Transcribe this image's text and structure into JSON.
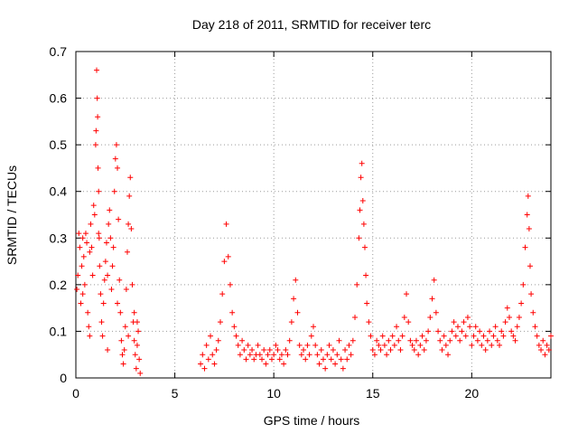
{
  "chart_data": {
    "type": "scatter",
    "title": "Day 218 of 2011, SRMTID for receiver terc",
    "xlabel": "GPS time / hours",
    "ylabel": "SRMTID / TECUs",
    "xlim": [
      0,
      24
    ],
    "ylim": [
      0,
      0.7
    ],
    "xticks": [
      0,
      5,
      10,
      15,
      20
    ],
    "yticks": [
      0,
      0.1,
      0.2,
      0.3,
      0.4,
      0.5,
      0.6,
      0.7
    ],
    "xtick_labels": [
      "0",
      "5",
      "10",
      "15",
      "20"
    ],
    "ytick_labels": [
      "0",
      "0.1",
      "0.2",
      "0.3",
      "0.4",
      "0.5",
      "0.6",
      "0.7"
    ],
    "grid": true,
    "marker": "plus",
    "marker_color": "#ff0000",
    "series": [
      {
        "name": "SRMTID",
        "points": [
          [
            0.05,
            0.19
          ],
          [
            0.1,
            0.22
          ],
          [
            0.15,
            0.31
          ],
          [
            0.2,
            0.28
          ],
          [
            0.25,
            0.16
          ],
          [
            0.3,
            0.24
          ],
          [
            0.35,
            0.3
          ],
          [
            0.4,
            0.26
          ],
          [
            0.45,
            0.2
          ],
          [
            0.5,
            0.31
          ],
          [
            0.55,
            0.29
          ],
          [
            0.6,
            0.14
          ],
          [
            0.65,
            0.11
          ],
          [
            0.7,
            0.09
          ],
          [
            0.75,
            0.33
          ],
          [
            0.8,
            0.28
          ],
          [
            0.85,
            0.22
          ],
          [
            0.9,
            0.37
          ],
          [
            0.95,
            0.35
          ],
          [
            1.0,
            0.5
          ],
          [
            1.02,
            0.53
          ],
          [
            1.05,
            0.66
          ],
          [
            1.08,
            0.6
          ],
          [
            1.1,
            0.56
          ],
          [
            1.12,
            0.45
          ],
          [
            1.15,
            0.4
          ],
          [
            1.18,
            0.3
          ],
          [
            1.2,
            0.24
          ],
          [
            1.25,
            0.18
          ],
          [
            1.3,
            0.12
          ],
          [
            1.35,
            0.09
          ],
          [
            1.4,
            0.16
          ],
          [
            1.45,
            0.21
          ],
          [
            1.5,
            0.25
          ],
          [
            1.55,
            0.29
          ],
          [
            1.6,
            0.22
          ],
          [
            1.65,
            0.33
          ],
          [
            1.7,
            0.36
          ],
          [
            1.75,
            0.3
          ],
          [
            1.8,
            0.19
          ],
          [
            1.85,
            0.24
          ],
          [
            1.9,
            0.28
          ],
          [
            1.95,
            0.4
          ],
          [
            2.0,
            0.47
          ],
          [
            2.05,
            0.5
          ],
          [
            2.1,
            0.45
          ],
          [
            2.15,
            0.34
          ],
          [
            2.2,
            0.21
          ],
          [
            2.25,
            0.14
          ],
          [
            2.3,
            0.08
          ],
          [
            2.35,
            0.05
          ],
          [
            2.4,
            0.03
          ],
          [
            2.45,
            0.06
          ],
          [
            2.5,
            0.11
          ],
          [
            2.55,
            0.19
          ],
          [
            2.6,
            0.27
          ],
          [
            2.65,
            0.33
          ],
          [
            2.7,
            0.39
          ],
          [
            2.75,
            0.43
          ],
          [
            2.8,
            0.32
          ],
          [
            2.85,
            0.2
          ],
          [
            2.9,
            0.12
          ],
          [
            2.95,
            0.08
          ],
          [
            3.0,
            0.05
          ],
          [
            3.05,
            0.02
          ],
          [
            3.1,
            0.07
          ],
          [
            3.15,
            0.1
          ],
          [
            3.2,
            0.04
          ],
          [
            3.25,
            0.01
          ],
          [
            0.35,
            0.18
          ],
          [
            0.7,
            0.27
          ],
          [
            1.15,
            0.31
          ],
          [
            1.6,
            0.06
          ],
          [
            2.1,
            0.16
          ],
          [
            2.65,
            0.09
          ],
          [
            2.95,
            0.14
          ],
          [
            3.1,
            0.12
          ],
          [
            6.3,
            0.03
          ],
          [
            6.4,
            0.05
          ],
          [
            6.5,
            0.02
          ],
          [
            6.6,
            0.07
          ],
          [
            6.7,
            0.04
          ],
          [
            6.8,
            0.09
          ],
          [
            6.9,
            0.05
          ],
          [
            7.0,
            0.03
          ],
          [
            7.1,
            0.06
          ],
          [
            7.2,
            0.08
          ],
          [
            7.3,
            0.12
          ],
          [
            7.4,
            0.18
          ],
          [
            7.5,
            0.25
          ],
          [
            7.6,
            0.33
          ],
          [
            7.7,
            0.26
          ],
          [
            7.8,
            0.2
          ],
          [
            7.9,
            0.14
          ],
          [
            8.0,
            0.11
          ],
          [
            8.1,
            0.09
          ],
          [
            8.2,
            0.07
          ],
          [
            8.3,
            0.05
          ],
          [
            8.4,
            0.08
          ],
          [
            8.5,
            0.06
          ],
          [
            8.6,
            0.04
          ],
          [
            8.7,
            0.07
          ],
          [
            8.8,
            0.05
          ],
          [
            8.9,
            0.06
          ],
          [
            9.0,
            0.04
          ],
          [
            9.1,
            0.05
          ],
          [
            9.2,
            0.07
          ],
          [
            9.3,
            0.05
          ],
          [
            9.4,
            0.04
          ],
          [
            9.5,
            0.06
          ],
          [
            9.6,
            0.03
          ],
          [
            9.7,
            0.05
          ],
          [
            9.8,
            0.06
          ],
          [
            9.9,
            0.04
          ],
          [
            10.0,
            0.05
          ],
          [
            10.1,
            0.07
          ],
          [
            10.2,
            0.06
          ],
          [
            10.3,
            0.04
          ],
          [
            10.4,
            0.05
          ],
          [
            10.5,
            0.03
          ],
          [
            10.6,
            0.06
          ],
          [
            10.7,
            0.05
          ],
          [
            10.8,
            0.08
          ],
          [
            10.9,
            0.12
          ],
          [
            11.0,
            0.17
          ],
          [
            11.1,
            0.21
          ],
          [
            11.2,
            0.14
          ],
          [
            11.3,
            0.07
          ],
          [
            11.4,
            0.05
          ],
          [
            11.5,
            0.06
          ],
          [
            11.6,
            0.04
          ],
          [
            11.7,
            0.07
          ],
          [
            11.8,
            0.05
          ],
          [
            11.9,
            0.09
          ],
          [
            12.0,
            0.11
          ],
          [
            12.1,
            0.07
          ],
          [
            12.2,
            0.05
          ],
          [
            12.3,
            0.03
          ],
          [
            12.4,
            0.06
          ],
          [
            12.5,
            0.04
          ],
          [
            12.6,
            0.02
          ],
          [
            12.7,
            0.05
          ],
          [
            12.8,
            0.07
          ],
          [
            12.9,
            0.04
          ],
          [
            13.0,
            0.06
          ],
          [
            13.1,
            0.03
          ],
          [
            13.2,
            0.05
          ],
          [
            13.3,
            0.08
          ],
          [
            13.4,
            0.04
          ],
          [
            13.5,
            0.02
          ],
          [
            13.6,
            0.06
          ],
          [
            13.7,
            0.04
          ],
          [
            13.8,
            0.07
          ],
          [
            13.9,
            0.05
          ],
          [
            14.0,
            0.08
          ],
          [
            14.1,
            0.13
          ],
          [
            14.2,
            0.2
          ],
          [
            14.3,
            0.3
          ],
          [
            14.35,
            0.36
          ],
          [
            14.4,
            0.43
          ],
          [
            14.45,
            0.46
          ],
          [
            14.5,
            0.38
          ],
          [
            14.55,
            0.33
          ],
          [
            14.6,
            0.28
          ],
          [
            14.65,
            0.22
          ],
          [
            14.7,
            0.16
          ],
          [
            14.8,
            0.12
          ],
          [
            14.9,
            0.09
          ],
          [
            15.0,
            0.06
          ],
          [
            15.1,
            0.05
          ],
          [
            15.2,
            0.08
          ],
          [
            15.3,
            0.07
          ],
          [
            15.4,
            0.06
          ],
          [
            15.5,
            0.09
          ],
          [
            15.6,
            0.07
          ],
          [
            15.7,
            0.05
          ],
          [
            15.8,
            0.08
          ],
          [
            15.9,
            0.06
          ],
          [
            16.0,
            0.09
          ],
          [
            16.1,
            0.07
          ],
          [
            16.2,
            0.11
          ],
          [
            16.3,
            0.08
          ],
          [
            16.4,
            0.06
          ],
          [
            16.5,
            0.09
          ],
          [
            16.6,
            0.13
          ],
          [
            16.7,
            0.18
          ],
          [
            16.8,
            0.12
          ],
          [
            16.9,
            0.08
          ],
          [
            17.0,
            0.07
          ],
          [
            17.1,
            0.06
          ],
          [
            17.2,
            0.08
          ],
          [
            17.3,
            0.05
          ],
          [
            17.4,
            0.07
          ],
          [
            17.5,
            0.09
          ],
          [
            17.6,
            0.06
          ],
          [
            17.7,
            0.08
          ],
          [
            17.8,
            0.1
          ],
          [
            17.9,
            0.13
          ],
          [
            18.0,
            0.17
          ],
          [
            18.1,
            0.21
          ],
          [
            18.2,
            0.14
          ],
          [
            18.3,
            0.1
          ],
          [
            18.4,
            0.08
          ],
          [
            18.5,
            0.06
          ],
          [
            18.6,
            0.09
          ],
          [
            18.7,
            0.07
          ],
          [
            18.8,
            0.05
          ],
          [
            18.9,
            0.08
          ],
          [
            19.0,
            0.1
          ],
          [
            19.1,
            0.12
          ],
          [
            19.2,
            0.09
          ],
          [
            19.3,
            0.11
          ],
          [
            19.4,
            0.08
          ],
          [
            19.5,
            0.1
          ],
          [
            19.6,
            0.12
          ],
          [
            19.7,
            0.09
          ],
          [
            19.8,
            0.13
          ],
          [
            19.9,
            0.11
          ],
          [
            20.0,
            0.07
          ],
          [
            20.1,
            0.09
          ],
          [
            20.2,
            0.11
          ],
          [
            20.3,
            0.08
          ],
          [
            20.4,
            0.1
          ],
          [
            20.5,
            0.07
          ],
          [
            20.6,
            0.09
          ],
          [
            20.7,
            0.06
          ],
          [
            20.8,
            0.08
          ],
          [
            20.9,
            0.1
          ],
          [
            21.0,
            0.07
          ],
          [
            21.1,
            0.09
          ],
          [
            21.2,
            0.11
          ],
          [
            21.3,
            0.08
          ],
          [
            21.4,
            0.07
          ],
          [
            21.5,
            0.1
          ],
          [
            21.6,
            0.09
          ],
          [
            21.7,
            0.12
          ],
          [
            21.8,
            0.15
          ],
          [
            21.9,
            0.13
          ],
          [
            22.0,
            0.1
          ],
          [
            22.1,
            0.09
          ],
          [
            22.2,
            0.08
          ],
          [
            22.3,
            0.11
          ],
          [
            22.4,
            0.13
          ],
          [
            22.5,
            0.16
          ],
          [
            22.6,
            0.2
          ],
          [
            22.7,
            0.28
          ],
          [
            22.8,
            0.35
          ],
          [
            22.85,
            0.39
          ],
          [
            22.9,
            0.32
          ],
          [
            22.95,
            0.24
          ],
          [
            23.0,
            0.18
          ],
          [
            23.1,
            0.14
          ],
          [
            23.2,
            0.11
          ],
          [
            23.3,
            0.09
          ],
          [
            23.4,
            0.07
          ],
          [
            23.5,
            0.06
          ],
          [
            23.6,
            0.08
          ],
          [
            23.7,
            0.05
          ],
          [
            23.8,
            0.07
          ],
          [
            23.9,
            0.06
          ],
          [
            24.0,
            0.09
          ]
        ]
      }
    ]
  }
}
